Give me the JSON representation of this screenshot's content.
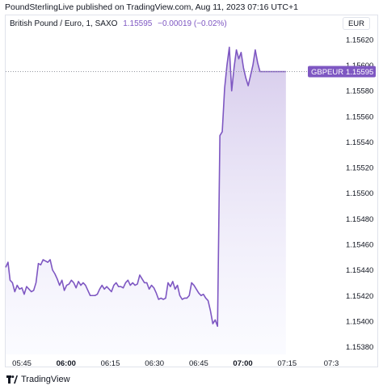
{
  "caption": "PoundSterlingLive published on TradingView.com, Aug 11, 2023 07:16 UTC+1",
  "legend": {
    "symbol": "British Pound / Euro, 1, SAXO",
    "price": "1.15595",
    "change": "−0.00019 (−0.02%)"
  },
  "currency_button": "EUR",
  "brand": "TradingView",
  "colors": {
    "line": "#7e57c2",
    "fill_top": "#d1c4e9",
    "fill_bottom": "#f4f5ff",
    "price_tag": "#7e57c2"
  },
  "chart_data": {
    "type": "area",
    "title": "British Pound / Euro, 1, SAXO",
    "x_tick_labels": [
      "05:45",
      "06:00",
      "06:15",
      "06:30",
      "06:45",
      "07:00",
      "07:15",
      "07:3"
    ],
    "x_ticks_minutes": [
      345,
      360,
      375,
      390,
      405,
      420,
      435,
      450
    ],
    "bold_x_ticks": [
      "06:00",
      "07:00"
    ],
    "y_tick_labels": [
      "1.15620",
      "1.15600",
      "1.15580",
      "1.15560",
      "1.15540",
      "1.15520",
      "1.15500",
      "1.15480",
      "1.15460",
      "1.15440",
      "1.15420",
      "1.15400",
      "1.15380"
    ],
    "ylim": [
      1.15374,
      1.15632
    ],
    "xlim": [
      339.5,
      452
    ],
    "grid": false,
    "last_price_label": {
      "symbol": "GBPEUR",
      "value": "1.15595"
    },
    "series": [
      {
        "x": [
          339.5,
          340.3,
          341.0,
          341.8,
          342.6,
          343.4,
          344.2,
          345.0,
          345.8,
          346.6,
          347.4,
          348.2,
          349.0,
          349.8,
          350.6,
          351.4,
          352.2,
          353.0,
          353.8,
          354.6,
          355.4,
          356.2,
          357.0,
          357.8,
          358.6,
          359.4,
          360.2,
          361.0,
          361.8,
          362.6,
          363.4,
          364.2,
          365.0,
          365.8,
          366.6,
          367.4,
          368.2,
          369.0,
          369.8,
          370.6,
          371.4,
          372.2,
          373.0,
          373.8,
          374.6,
          375.4,
          376.2,
          377.0,
          377.8,
          378.6,
          379.4,
          380.2,
          381.0,
          381.8,
          382.6,
          383.4,
          384.2,
          385.0,
          385.8,
          386.6,
          387.4,
          388.2,
          389.0,
          389.8,
          390.6,
          391.4,
          392.2,
          393.0,
          393.8,
          394.6,
          395.4,
          396.2,
          397.0,
          397.8,
          398.6,
          399.4,
          400.2,
          401.0,
          401.8,
          402.6,
          403.4,
          404.2,
          405.0,
          405.8,
          406.6,
          407.4,
          408.2,
          409.0,
          409.8,
          410.6,
          411.4,
          412.2,
          413.0,
          413.8,
          414.6,
          415.4,
          416.2,
          417.0,
          417.8,
          418.6,
          419.4,
          420.2,
          421.0,
          421.8,
          422.6,
          423.4,
          424.2,
          425.0,
          425.8,
          426.6,
          427.4,
          428.2,
          429.0,
          429.8,
          430.6,
          431.4,
          432.2,
          433.0,
          433.8,
          434.6
        ],
        "values": [
          1.15442,
          1.15446,
          1.15432,
          1.1543,
          1.15423,
          1.15428,
          1.15425,
          1.15426,
          1.15421,
          1.15427,
          1.15425,
          1.15423,
          1.15424,
          1.1543,
          1.15445,
          1.15444,
          1.15448,
          1.15447,
          1.15446,
          1.15448,
          1.1544,
          1.15437,
          1.15433,
          1.15428,
          1.15432,
          1.15424,
          1.15428,
          1.15429,
          1.15432,
          1.1543,
          1.15426,
          1.15431,
          1.15428,
          1.1543,
          1.15428,
          1.15424,
          1.1542,
          1.1542,
          1.1542,
          1.15421,
          1.15425,
          1.15428,
          1.15425,
          1.15427,
          1.15425,
          1.15423,
          1.15428,
          1.1543,
          1.15427,
          1.15427,
          1.15426,
          1.1543,
          1.15432,
          1.15428,
          1.1543,
          1.15428,
          1.15429,
          1.15436,
          1.15433,
          1.1543,
          1.1543,
          1.15425,
          1.15428,
          1.15426,
          1.15422,
          1.15417,
          1.15418,
          1.15417,
          1.15418,
          1.1543,
          1.15427,
          1.15431,
          1.15425,
          1.15428,
          1.1542,
          1.15417,
          1.15418,
          1.15418,
          1.1542,
          1.1543,
          1.15428,
          1.15425,
          1.15422,
          1.1542,
          1.15421,
          1.15418,
          1.15416,
          1.15408,
          1.15398,
          1.15401,
          1.15396,
          1.15545,
          1.15548,
          1.15582,
          1.156,
          1.15614,
          1.1558,
          1.15598,
          1.15612,
          1.15605,
          1.1561,
          1.15598,
          1.1559,
          1.15584,
          1.15592,
          1.156,
          1.15612,
          1.15602,
          1.15595,
          1.15595,
          1.15595,
          1.15595,
          1.15595,
          1.15595,
          1.15595,
          1.15595,
          1.15595,
          1.15595,
          1.15595,
          1.15595
        ]
      }
    ]
  }
}
